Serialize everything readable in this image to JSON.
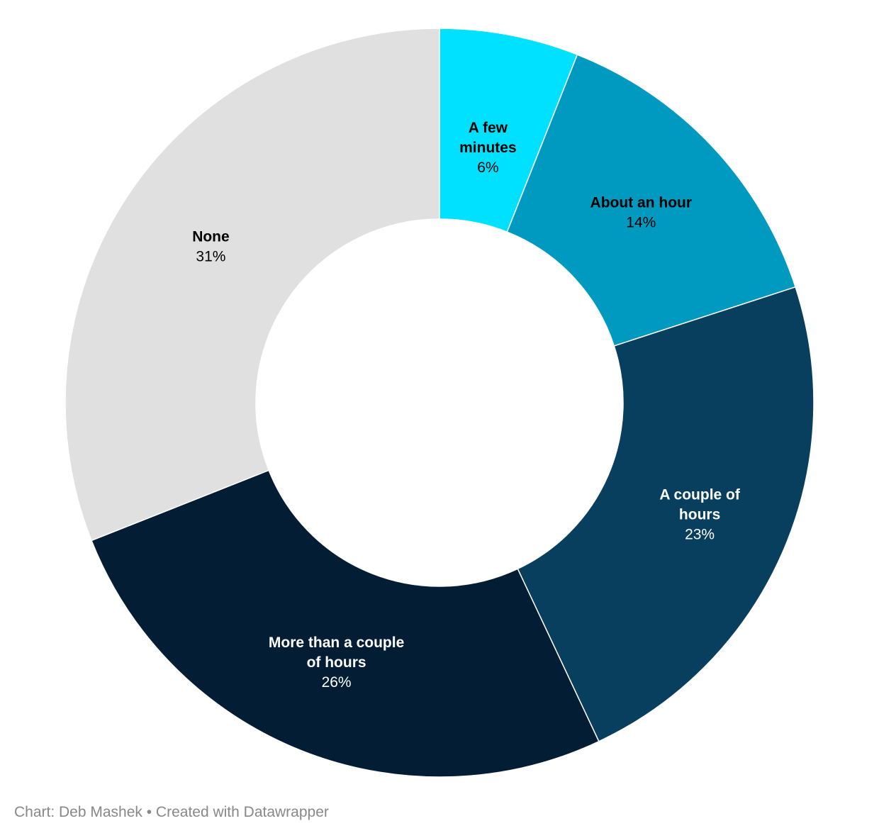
{
  "chart_data": {
    "type": "pie",
    "donut": true,
    "title": "",
    "slices": [
      {
        "label": "A few minutes",
        "value": 6,
        "value_label": "6%",
        "color": "#00e1ff",
        "label_color": "#000000"
      },
      {
        "label": "About an hour",
        "value": 14,
        "value_label": "14%",
        "color": "#009ac1",
        "label_color": "#000000"
      },
      {
        "label": "A couple of hours",
        "value": 23,
        "value_label": "23%",
        "color": "#083f5e",
        "label_color": "#ffffff"
      },
      {
        "label": "More than a couple of hours",
        "value": 26,
        "value_label": "26%",
        "color": "#031d35",
        "label_color": "#ffffff"
      },
      {
        "label": "None",
        "value": 31,
        "value_label": "31%",
        "color": "#e0e0e0",
        "label_color": "#000000"
      }
    ]
  },
  "footer": {
    "credit": "Chart: Deb Mashek • Created with Datawrapper"
  }
}
